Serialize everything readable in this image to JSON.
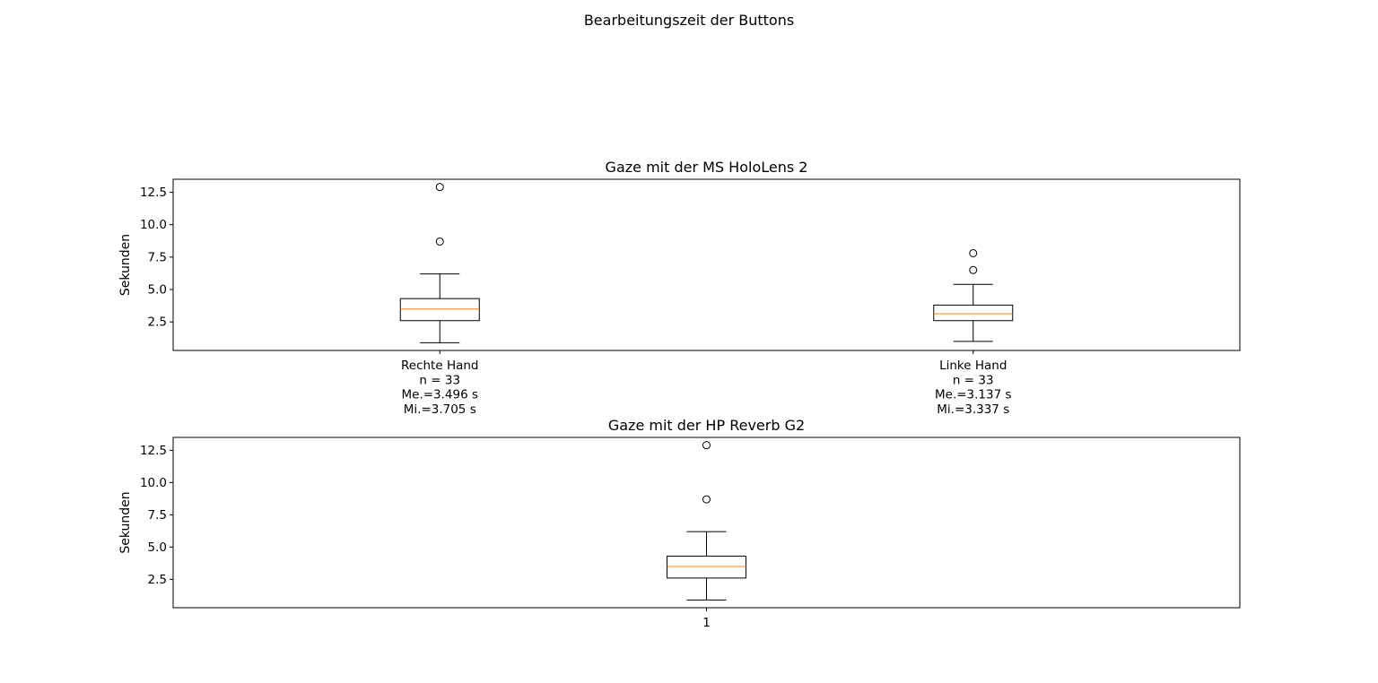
{
  "figure": {
    "suptitle": "Bearbeitungszeit der Buttons"
  },
  "chart_data": [
    {
      "type": "box",
      "title": "Gaze mit der MS HoloLens 2",
      "ylabel": "Sekunden",
      "xlabel": "",
      "ylim": [
        0.3,
        13.5
      ],
      "yticks": [
        2.5,
        5.0,
        7.5,
        10.0,
        12.5
      ],
      "ytick_labels": [
        "2.5",
        "5.0",
        "7.5",
        "10.0",
        "12.5"
      ],
      "grid": false,
      "median_color": "#ff7f0e",
      "categories": [
        {
          "label_lines": [
            "Rechte Hand",
            "n = 33",
            "Me.=3.496 s",
            "Mi.=3.705 s"
          ],
          "whisker_low": 0.9,
          "q1": 2.6,
          "median": 3.496,
          "q3": 4.3,
          "whisker_high": 6.2,
          "fliers": [
            8.7,
            12.9
          ]
        },
        {
          "label_lines": [
            "Linke Hand",
            "n = 33",
            "Me.=3.137 s",
            "Mi.=3.337 s"
          ],
          "whisker_low": 1.0,
          "q1": 2.6,
          "median": 3.137,
          "q3": 3.8,
          "whisker_high": 5.4,
          "fliers": [
            6.5,
            7.8
          ]
        }
      ]
    },
    {
      "type": "box",
      "title": "Gaze mit der HP Reverb G2",
      "ylabel": "Sekunden",
      "xlabel": "",
      "ylim": [
        0.3,
        13.5
      ],
      "yticks": [
        2.5,
        5.0,
        7.5,
        10.0,
        12.5
      ],
      "ytick_labels": [
        "2.5",
        "5.0",
        "7.5",
        "10.0",
        "12.5"
      ],
      "grid": false,
      "median_color": "#ff7f0e",
      "categories": [
        {
          "label_lines": [
            "1"
          ],
          "whisker_low": 0.9,
          "q1": 2.6,
          "median": 3.5,
          "q3": 4.3,
          "whisker_high": 6.2,
          "fliers": [
            8.7,
            12.9
          ]
        }
      ]
    }
  ]
}
